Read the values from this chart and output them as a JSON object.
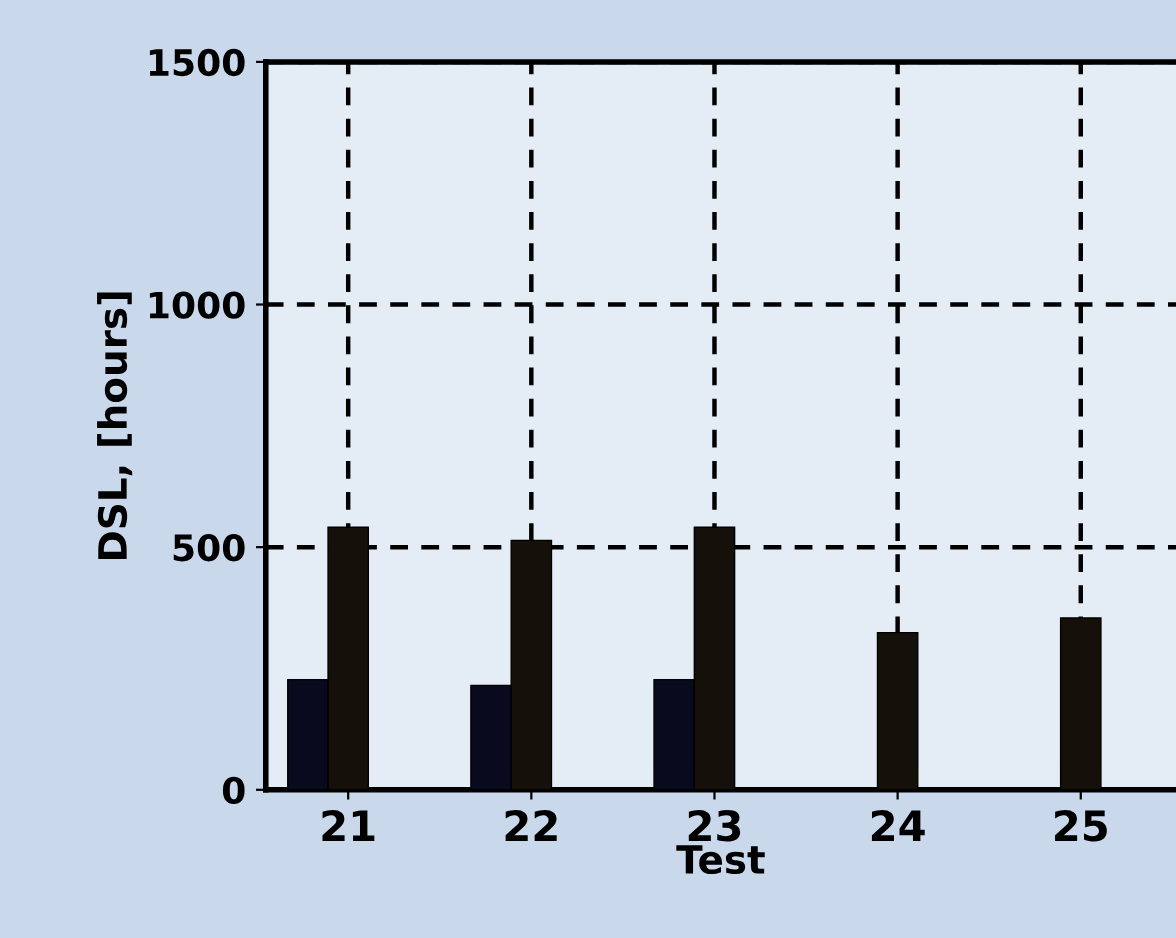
{
  "chart_data": {
    "type": "bar",
    "xlabel": "Test",
    "ylabel": "DSL, [hours]",
    "categories": [
      "21",
      "22",
      "23",
      "24",
      "25"
    ],
    "series": [
      {
        "color": "#0a0a1e",
        "values": [
          227,
          215,
          227,
          null,
          null
        ]
      },
      {
        "color": "#15110a",
        "values": [
          541,
          514,
          541,
          324,
          354
        ]
      },
      {
        "color": "#000000",
        "values": [
          null,
          null,
          null,
          null,
          null
        ]
      }
    ],
    "ylim": [
      0,
      1500
    ],
    "yticks": [
      0,
      500,
      1000,
      1500
    ],
    "grid": true,
    "legend": false
  }
}
